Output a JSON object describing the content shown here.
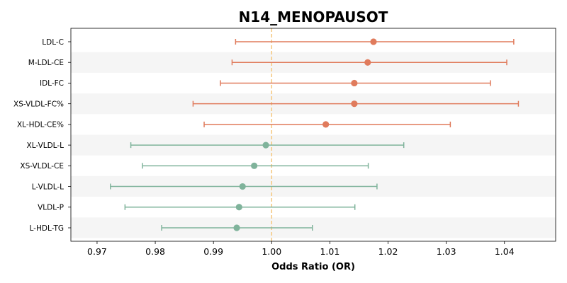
{
  "chart_data": {
    "type": "forest",
    "title": "N14_MENOPAUSOT",
    "xlabel": "Odds Ratio (OR)",
    "ylabel": "",
    "xlim": [
      0.9655,
      1.0488
    ],
    "xticks": [
      0.97,
      0.98,
      0.99,
      1.0,
      1.01,
      1.02,
      1.03,
      1.04
    ],
    "xtick_labels": [
      "0.97",
      "0.98",
      "0.99",
      "1.00",
      "1.01",
      "1.02",
      "1.03",
      "1.04"
    ],
    "reference_line": 1.0,
    "grid": false,
    "row_banding": true,
    "colors": {
      "increased": "#e07b5c",
      "decreased": "#7fb39b",
      "reference": "#f5c77e",
      "band": "#f5f5f5"
    },
    "rows": [
      {
        "label": "LDL-C",
        "or": 1.0175,
        "lower": 0.9938,
        "upper": 1.0416,
        "direction": "increased"
      },
      {
        "label": "M-LDL-CE",
        "or": 1.0165,
        "lower": 0.9932,
        "upper": 1.0404,
        "direction": "increased"
      },
      {
        "label": "IDL-FC",
        "or": 1.0142,
        "lower": 0.9912,
        "upper": 1.0376,
        "direction": "increased"
      },
      {
        "label": "XS-VLDL-FC%",
        "or": 1.0142,
        "lower": 0.9865,
        "upper": 1.0424,
        "direction": "increased"
      },
      {
        "label": "XL-HDL-CE%",
        "or": 1.0093,
        "lower": 0.9884,
        "upper": 1.0307,
        "direction": "increased"
      },
      {
        "label": "XL-VLDL-L",
        "or": 0.999,
        "lower": 0.9758,
        "upper": 1.0227,
        "direction": "decreased"
      },
      {
        "label": "XS-VLDL-CE",
        "or": 0.997,
        "lower": 0.9778,
        "upper": 1.0166,
        "direction": "decreased"
      },
      {
        "label": "L-VLDL-L",
        "or": 0.995,
        "lower": 0.9723,
        "upper": 1.0181,
        "direction": "decreased"
      },
      {
        "label": "VLDL-P",
        "or": 0.9944,
        "lower": 0.9748,
        "upper": 1.0143,
        "direction": "decreased"
      },
      {
        "label": "L-HDL-TG",
        "or": 0.994,
        "lower": 0.9811,
        "upper": 1.007,
        "direction": "decreased"
      }
    ]
  }
}
